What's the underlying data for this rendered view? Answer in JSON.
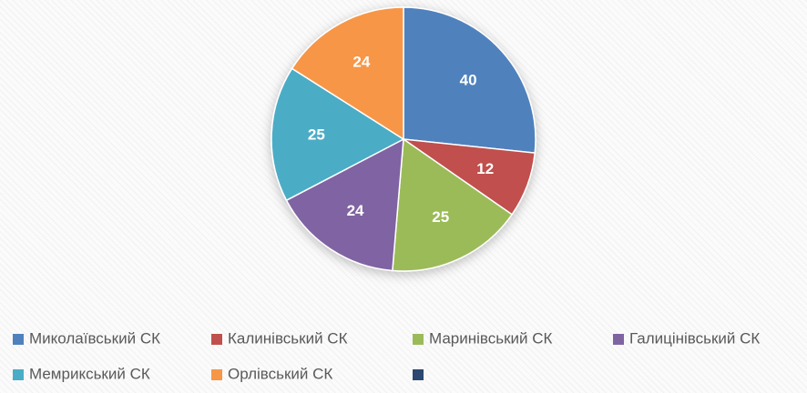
{
  "chart_data": {
    "type": "pie",
    "categories": [
      "Миколаївський СК",
      "Калинівський СК",
      "Маринівський СК",
      "Галицінівський СК",
      "Мемрикський СК",
      "Орлівський СК",
      null
    ],
    "values": [
      40,
      12,
      25,
      24,
      25,
      24,
      null
    ],
    "colors": [
      "#4f81bd",
      "#c0504d",
      "#9bbb59",
      "#8064a2",
      "#4bacc6",
      "#f79646",
      "#2c4770"
    ]
  }
}
